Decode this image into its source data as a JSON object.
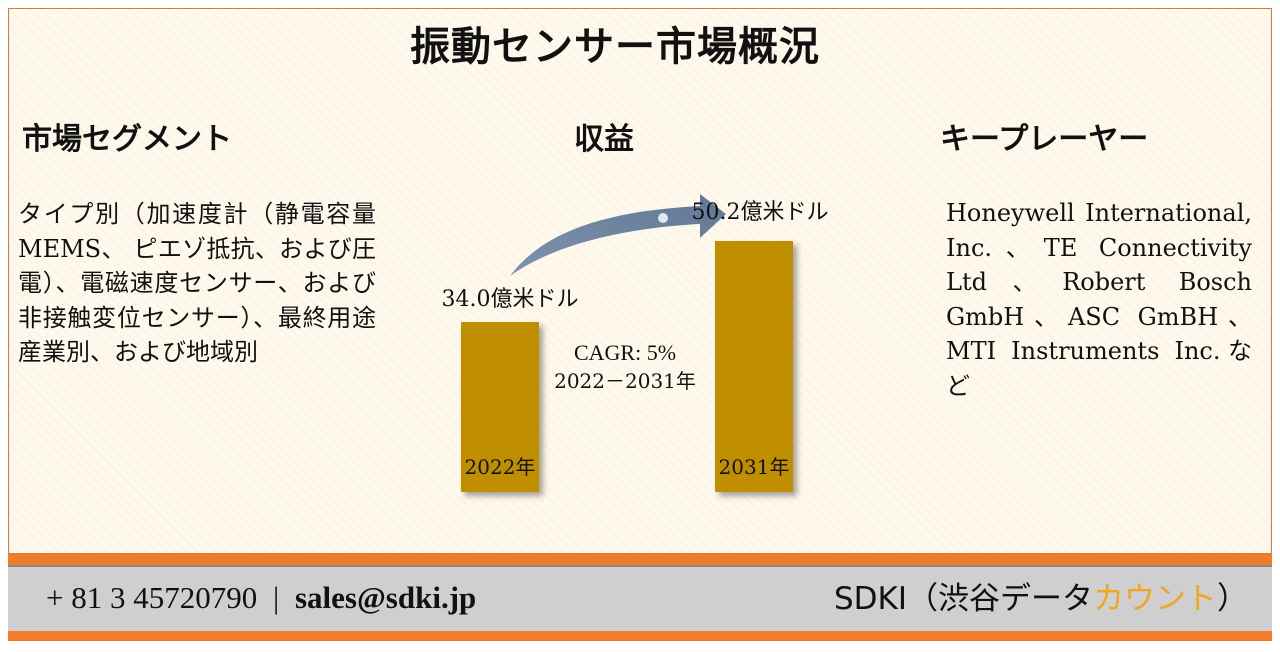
{
  "title": "振動センサー市場概況",
  "segments": {
    "heading": "市場セグメント",
    "text": "タイプ別（加速度計（静電容量MEMS、 ピエゾ抵抗、および圧電）、電磁速度センサー、および非接触変位センサー）、最終用途産業別、および地域別"
  },
  "revenue": {
    "heading": "収益"
  },
  "key_players": {
    "heading": "キープレーヤー",
    "text": "Honeywell International, Inc.、TE Connectivity Ltd、Robert Bosch GmbH、ASC GmBH、MTI Instruments Inc.など"
  },
  "chart_data": {
    "type": "bar",
    "categories": [
      "2022年",
      "2031年"
    ],
    "values": [
      34.0,
      50.2
    ],
    "value_labels": [
      "34.0億米ドル",
      "50.2億米ドル"
    ],
    "unit": "億米ドル",
    "annotation": [
      "CAGR: 5%",
      "2022－2031年"
    ],
    "bar_color": "#bf8f00",
    "arrow_color": "#8496b0",
    "grid": false
  },
  "footer": {
    "phone": "+ 81 3 45720790",
    "separator": "|",
    "email": "sales@sdki.jp",
    "brand_prefix": "SDKI（渋谷データ",
    "brand_accent": "カウント",
    "brand_suffix": "）",
    "accent_color": "#f0a623",
    "bar_color": "#ef7d2c"
  }
}
